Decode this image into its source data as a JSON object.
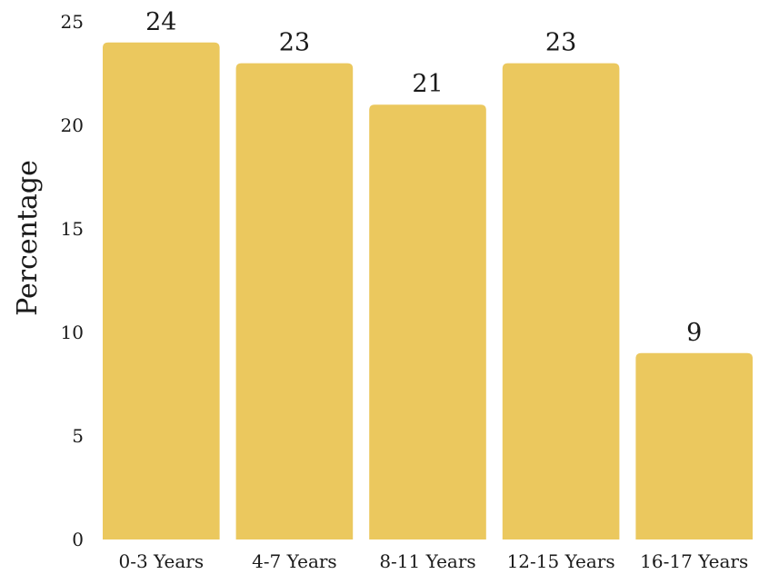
{
  "chart_data": {
    "type": "bar",
    "title": "",
    "xlabel": "",
    "ylabel": "Percentage",
    "categories": [
      "0-3 Years",
      "4-7 Years",
      "8-11 Years",
      "12-15 Years",
      "16-17 Years"
    ],
    "values": [
      24,
      23,
      21,
      23,
      9
    ],
    "data_labels": [
      "24",
      "23",
      "21",
      "23",
      "9"
    ],
    "ylim": [
      0,
      25
    ],
    "yticks": [
      0,
      5,
      10,
      15,
      20,
      25
    ],
    "ytick_labels": [
      "0",
      "5",
      "10",
      "15",
      "20",
      "25"
    ],
    "grid": false,
    "legend": "none",
    "bar_color": "#EBC85E"
  }
}
